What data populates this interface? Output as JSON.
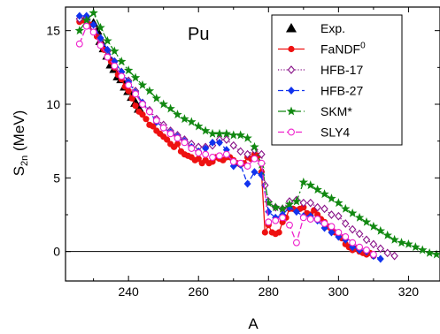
{
  "chart_data": {
    "type": "line",
    "xlabel": "A",
    "ylabel": "S",
    "ylabel_sub": "2n",
    "ylabel_rest": " (MeV)",
    "annotation": "Pu",
    "xlim": [
      222,
      329
    ],
    "ylim": [
      -2,
      16.6
    ],
    "xticks": [
      240,
      260,
      280,
      300,
      320
    ],
    "yticks": [
      0,
      5,
      10,
      15
    ],
    "grid": false,
    "legend_position": "top-right",
    "series": [
      {
        "name": "Exp.",
        "color": "#000000",
        "marker": "triangle",
        "dash": "none",
        "x": [
          230,
          231,
          232,
          233,
          234,
          235,
          236,
          237,
          238,
          239,
          240,
          241,
          242,
          243
        ],
        "y": [
          15.5,
          15.0,
          14.3,
          13.8,
          13.3,
          12.7,
          12.4,
          11.9,
          11.7,
          11.2,
          10.9,
          10.5,
          10.1,
          9.7
        ]
      },
      {
        "name": "FaNDF",
        "name_sup": "0",
        "color": "#ee1111",
        "marker": "circle-filled",
        "dash": "none",
        "x": [
          226,
          227,
          228,
          229,
          230,
          231,
          232,
          233,
          234,
          235,
          236,
          237,
          238,
          239,
          240,
          241,
          242,
          243,
          244,
          245,
          246,
          247,
          248,
          249,
          250,
          251,
          252,
          253,
          254,
          255,
          256,
          257,
          258,
          259,
          260,
          261,
          262,
          263,
          264,
          265,
          266,
          267,
          268,
          269,
          270,
          271,
          272,
          273,
          274,
          275,
          276,
          277,
          278,
          279,
          280,
          281,
          282,
          283,
          284,
          285,
          286,
          287,
          288,
          289,
          290,
          291,
          292,
          293,
          294,
          295,
          296,
          297,
          298,
          299,
          300,
          301,
          302,
          303,
          304,
          305,
          306,
          307,
          308,
          309,
          310
        ],
        "y": [
          15.6,
          15.7,
          15.9,
          15.4,
          15.1,
          14.6,
          14.1,
          13.7,
          13.3,
          12.9,
          12.5,
          12.0,
          11.7,
          11.2,
          10.9,
          10.4,
          9.9,
          9.5,
          9.3,
          9.0,
          8.6,
          8.5,
          8.2,
          8.0,
          7.8,
          7.6,
          7.3,
          7.1,
          7.3,
          6.8,
          6.6,
          6.5,
          6.4,
          6.2,
          6.3,
          6.0,
          6.2,
          6.0,
          6.1,
          6.4,
          6.3,
          6.2,
          6.4,
          6.4,
          6.2,
          6.0,
          5.9,
          6.0,
          6.4,
          6.3,
          6.6,
          6.5,
          5.4,
          1.3,
          1.8,
          1.3,
          1.2,
          1.3,
          2.0,
          2.3,
          2.9,
          2.9,
          2.8,
          2.9,
          3.0,
          2.6,
          2.5,
          2.8,
          2.5,
          2.2,
          2.0,
          1.7,
          1.5,
          1.3,
          1.3,
          0.9,
          0.5,
          0.3,
          0.1,
          0.2,
          0.0,
          -0.1,
          -0.2,
          -0.1,
          -0.3
        ]
      },
      {
        "name": "HFB-17",
        "color": "#881188",
        "marker": "diamond-open",
        "dash": "1.2,2",
        "x": [
          226,
          228,
          230,
          232,
          234,
          236,
          238,
          240,
          242,
          244,
          246,
          248,
          250,
          252,
          254,
          256,
          258,
          260,
          262,
          264,
          266,
          268,
          270,
          272,
          274,
          276,
          278,
          279,
          280,
          282,
          284,
          286,
          288,
          290,
          292,
          294,
          296,
          298,
          300,
          302,
          304,
          306,
          308,
          310,
          312,
          314,
          316
        ],
        "y": [
          15.8,
          15.9,
          15.2,
          14.4,
          13.6,
          12.9,
          12.2,
          11.6,
          10.9,
          10.1,
          9.6,
          9.0,
          8.6,
          8.2,
          7.9,
          7.6,
          7.3,
          7.1,
          7.1,
          7.2,
          7.6,
          7.6,
          7.2,
          6.8,
          6.6,
          6.9,
          6.6,
          4.5,
          3.4,
          3.0,
          2.9,
          3.4,
          3.5,
          3.3,
          3.3,
          3.0,
          2.9,
          2.5,
          2.4,
          1.9,
          1.5,
          1.2,
          0.8,
          0.5,
          0.2,
          -0.1,
          -0.3
        ]
      },
      {
        "name": "HFB-27",
        "color": "#1133ee",
        "marker": "diamond-filled",
        "dash": "6,3",
        "x": [
          226,
          228,
          230,
          232,
          234,
          236,
          238,
          240,
          242,
          244,
          246,
          248,
          250,
          252,
          254,
          256,
          258,
          260,
          262,
          264,
          266,
          268,
          270,
          272,
          274,
          276,
          278,
          280,
          282,
          284,
          286,
          288,
          290,
          292,
          294,
          296,
          298,
          300,
          302,
          304,
          306,
          308,
          310,
          312
        ],
        "y": [
          16.0,
          16.0,
          15.4,
          14.5,
          13.7,
          12.9,
          12.2,
          11.5,
          10.8,
          10.1,
          9.5,
          8.8,
          8.4,
          8.1,
          7.8,
          7.5,
          7.1,
          6.8,
          7.0,
          7.4,
          7.4,
          6.9,
          5.8,
          5.9,
          4.6,
          5.4,
          5.2,
          2.7,
          2.3,
          2.5,
          3.0,
          2.7,
          2.4,
          2.4,
          2.1,
          1.6,
          1.3,
          1.0,
          0.8,
          0.3,
          0.1,
          0.0,
          -0.3,
          -0.5
        ]
      },
      {
        "name": "SKM*",
        "color": "#118811",
        "marker": "star",
        "dash": "9,3,2,3",
        "x": [
          226,
          228,
          230,
          232,
          234,
          236,
          238,
          240,
          242,
          244,
          246,
          248,
          250,
          252,
          254,
          256,
          258,
          260,
          262,
          264,
          266,
          268,
          270,
          272,
          274,
          276,
          278,
          280,
          282,
          284,
          286,
          288,
          290,
          292,
          294,
          296,
          298,
          300,
          302,
          304,
          306,
          308,
          310,
          312,
          314,
          316,
          318,
          320,
          322,
          324,
          326,
          328
        ],
        "y": [
          15.0,
          15.7,
          16.2,
          15.2,
          14.3,
          13.6,
          12.9,
          12.3,
          11.8,
          11.3,
          10.9,
          10.4,
          10.0,
          9.7,
          9.3,
          9.0,
          8.8,
          8.5,
          8.2,
          8.0,
          8.0,
          8.0,
          7.9,
          7.9,
          7.7,
          7.1,
          5.9,
          3.3,
          3.0,
          2.9,
          3.2,
          3.4,
          4.7,
          4.5,
          4.2,
          3.9,
          3.6,
          3.3,
          2.9,
          2.6,
          2.3,
          2.0,
          1.7,
          1.4,
          1.1,
          0.8,
          0.6,
          0.5,
          0.3,
          0.1,
          -0.1,
          -0.2
        ]
      },
      {
        "name": "SLY4",
        "color": "#ee22cc",
        "marker": "circle-open",
        "dash": "7,3",
        "x": [
          226,
          228,
          230,
          232,
          234,
          236,
          238,
          240,
          242,
          244,
          246,
          248,
          250,
          252,
          254,
          256,
          258,
          260,
          262,
          264,
          266,
          268,
          270,
          272,
          274,
          276,
          278,
          280,
          282,
          284,
          286,
          288,
          290,
          292,
          294,
          296,
          298,
          300,
          302,
          304,
          306,
          308,
          310
        ],
        "y": [
          14.1,
          15.3,
          14.9,
          14.0,
          13.2,
          12.6,
          11.9,
          11.3,
          10.7,
          10.0,
          9.5,
          8.9,
          8.4,
          8.0,
          7.7,
          7.4,
          7.0,
          6.7,
          6.6,
          6.4,
          6.5,
          6.6,
          6.1,
          6.0,
          5.8,
          6.3,
          6.0,
          2.0,
          2.1,
          2.3,
          1.8,
          0.6,
          2.3,
          2.2,
          2.2,
          1.9,
          1.7,
          1.3,
          1.0,
          0.6,
          0.3,
          0.1,
          -0.2
        ]
      }
    ]
  }
}
